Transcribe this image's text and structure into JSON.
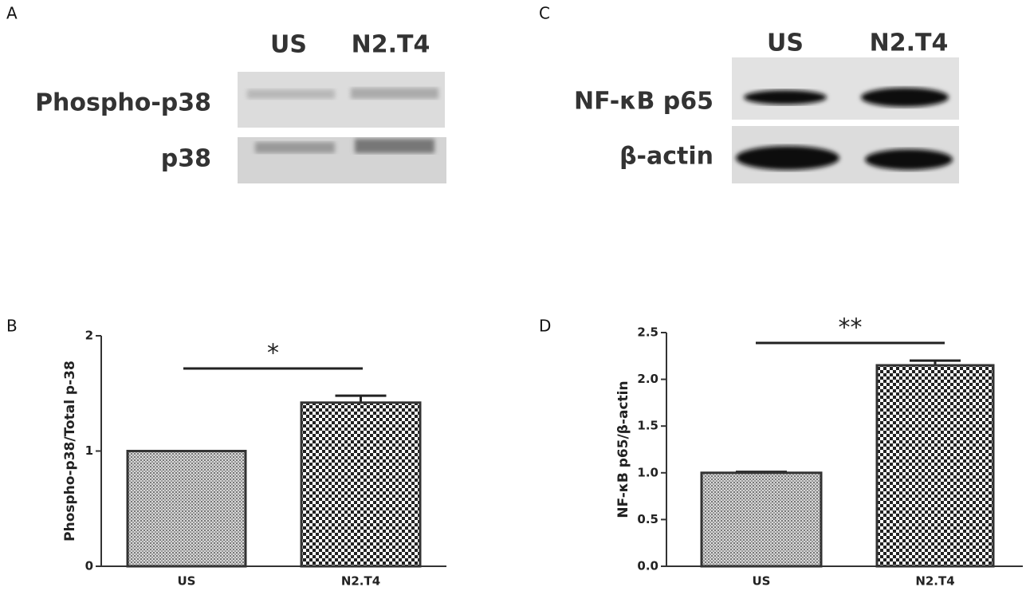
{
  "blots": {
    "A": {
      "letter": "A",
      "lanes": [
        "US",
        "N2.T4"
      ],
      "rows": [
        "Phospho-p38",
        "p38"
      ]
    },
    "C": {
      "letter": "C",
      "lanes": [
        "US",
        "N2.T4"
      ],
      "rows": [
        "NF-κB p65",
        "β-actin"
      ]
    }
  },
  "chart_data": [
    {
      "type": "bar",
      "letter": "B",
      "ylabel": "Phospho-p38/Total p-38",
      "annotation": "*",
      "categories": [
        "US",
        "N2.T4"
      ],
      "values": [
        1.0,
        1.42
      ],
      "errors": [
        0,
        0.06
      ],
      "ylim": [
        0,
        2
      ],
      "yticks": [
        0,
        1,
        2
      ]
    },
    {
      "type": "bar",
      "letter": "D",
      "ylabel": "NF-κB p65/β-actin",
      "annotation": "**",
      "categories": [
        "US",
        "N2.T4"
      ],
      "values": [
        1.0,
        2.15
      ],
      "errors": [
        0.01,
        0.05
      ],
      "ylim": [
        0,
        2.5
      ],
      "yticks": [
        {
          "value": 0,
          "label": "0.0"
        },
        0.5,
        {
          "value": 1,
          "label": "1.0"
        },
        1.5,
        {
          "value": 2,
          "label": "2.0"
        },
        2.5
      ]
    }
  ]
}
